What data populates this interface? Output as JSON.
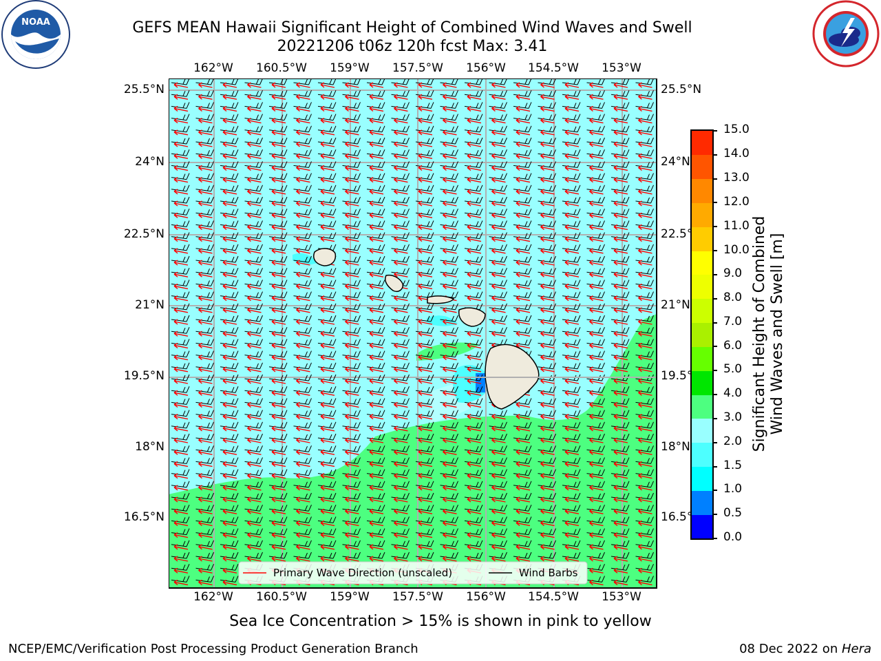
{
  "header": {
    "title_line1": "GEFS MEAN Hawaii Significant Height of Combined Wind Waves and Swell",
    "title_line2": "20221206 t06z 120h fcst   Max: 3.41"
  },
  "logos": {
    "left": {
      "text": "NOAA",
      "ring_text": "NATIONAL OCEANIC AND ATMOSPHERIC ADMINISTRATION · U.S. DEPARTMENT OF COMMERCE",
      "color": "#1f5aa6"
    },
    "right": {
      "ring_text": "NATIONAL WEATHER SERVICE",
      "color": "#d4262c"
    }
  },
  "map": {
    "lon_labels": [
      "162°W",
      "160.5°W",
      "159°W",
      "157.5°W",
      "156°W",
      "154.5°W",
      "153°W"
    ],
    "lat_labels": [
      "25.5°N",
      "24°N",
      "22.5°N",
      "21°N",
      "19.5°N",
      "18°N",
      "16.5°N"
    ],
    "ocean_low_color": "#99ffff",
    "ocean_high_color": "#4dff80",
    "land_color": "#efebdd",
    "wave_arrow_color": "#ff0000",
    "barb_color": "#000000"
  },
  "legend": {
    "wave_label": "Primary Wave Direction (unscaled)",
    "barb_label": "Wind Barbs"
  },
  "colorbar": {
    "label_line1": "Significant Height of Combined",
    "label_line2": "Wind Waves and Swell [m]",
    "ticks": [
      "15.0",
      "14.0",
      "13.0",
      "12.0",
      "11.0",
      "10.0",
      "9.0",
      "8.0",
      "7.0",
      "6.0",
      "5.0",
      "4.0",
      "3.0",
      "2.0",
      "1.5",
      "1.0",
      "0.5",
      "0.0"
    ],
    "colors": [
      "#0000ff",
      "#0080ff",
      "#00ffff",
      "#4dffff",
      "#99ffff",
      "#4dff80",
      "#00e600",
      "#66ff00",
      "#aaf000",
      "#ccff00",
      "#eeff00",
      "#ffff00",
      "#ffcc00",
      "#ffaa00",
      "#ff8800",
      "#ff5500",
      "#ff2a00",
      "#ff0000"
    ]
  },
  "caption": "Sea Ice Concentration > 15% is shown in pink to yellow",
  "footer": {
    "left": "NCEP/EMC/Verification Post Processing Product Generation Branch",
    "right_prefix": "08 Dec 2022 on ",
    "right_host": "Hera"
  }
}
